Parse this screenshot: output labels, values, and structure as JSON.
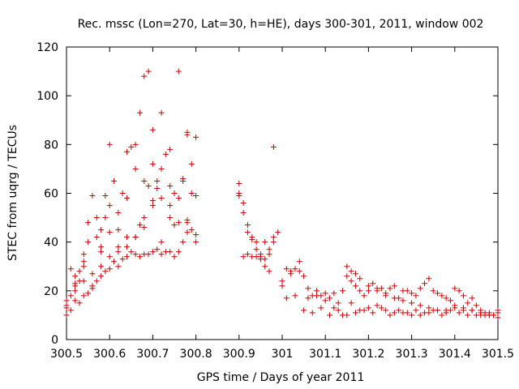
{
  "chart_data": {
    "type": "scatter",
    "title": "Rec. mssc (Lon=270, Lat=30, h=HE), days 300-301, 2011, window 002",
    "xlabel": "GPS time / Days of year 2011",
    "ylabel": "STEC from uqrg / TECUs",
    "xlim": [
      300.5,
      301.5
    ],
    "ylim": [
      0,
      120
    ],
    "xticks": [
      300.5,
      300.6,
      300.7,
      300.8,
      300.9,
      301.0,
      301.1,
      301.2,
      301.3,
      301.4,
      301.5
    ],
    "xtick_labels": [
      "300.5",
      "300.6",
      "300.7",
      "300.8",
      "300.9",
      "301",
      "301.1",
      "301.2",
      "301.3",
      "301.4",
      "301.5"
    ],
    "yticks": [
      0,
      20,
      40,
      60,
      80,
      100,
      120
    ],
    "ytick_labels": [
      "0",
      "20",
      "40",
      "60",
      "80",
      "100",
      "120"
    ],
    "marker": "+",
    "color": "#cc0000",
    "grid": false,
    "series": [
      {
        "x": [
          300.5,
          300.5,
          300.51,
          300.51,
          300.52,
          300.52,
          300.53,
          300.53,
          300.54,
          300.54,
          300.55,
          300.55,
          300.56,
          300.57,
          300.57,
          300.58,
          300.58,
          300.59,
          300.59,
          300.6,
          300.6,
          300.61,
          300.62,
          300.62,
          300.63,
          300.64,
          300.64,
          300.65,
          300.66,
          300.66,
          300.67,
          300.68,
          300.68,
          300.69,
          300.7,
          300.7,
          300.71,
          300.72,
          300.72,
          300.73,
          300.74,
          300.74,
          300.75,
          300.76,
          300.77,
          300.77,
          300.78,
          300.78,
          300.79,
          300.8,
          300.8,
          300.5,
          300.51,
          300.52,
          300.53,
          300.54,
          300.55,
          300.56,
          300.57,
          300.58,
          300.59,
          300.6,
          300.61,
          300.62,
          300.63,
          300.64,
          300.65,
          300.66,
          300.67,
          300.68,
          300.69,
          300.7,
          300.71,
          300.72,
          300.73,
          300.74,
          300.75,
          300.76,
          300.77,
          300.78,
          300.79,
          300.8,
          300.52,
          300.54,
          300.56,
          300.58,
          300.6,
          300.62,
          300.64,
          300.66,
          300.67,
          300.68,
          300.69,
          300.7,
          300.71,
          300.72,
          300.74,
          300.75,
          300.76,
          300.78,
          300.79,
          300.5,
          300.52,
          300.54,
          300.56,
          300.58,
          300.6,
          300.62,
          300.64,
          300.66,
          300.68,
          300.7,
          300.72,
          300.74,
          300.76,
          300.78,
          300.8,
          300.9,
          300.9,
          300.91,
          300.91,
          300.92,
          300.92,
          300.93,
          300.93,
          300.94,
          300.94,
          300.95,
          300.95,
          300.96,
          300.96,
          300.97,
          300.97,
          300.98,
          300.98,
          300.99,
          300.9,
          300.91,
          300.92,
          300.93,
          300.94,
          300.95,
          300.96,
          300.97,
          300.98,
          301.0,
          301.01,
          301.02,
          301.03,
          301.04,
          301.05,
          301.06,
          301.07,
          301.08,
          301.09,
          301.1,
          301.11,
          301.12,
          301.13,
          301.14,
          301.15,
          301.16,
          301.17,
          301.18,
          301.19,
          301.2,
          301.21,
          301.22,
          301.23,
          301.24,
          301.25,
          301.26,
          301.27,
          301.28,
          301.29,
          301.3,
          301.31,
          301.32,
          301.33,
          301.34,
          301.35,
          301.36,
          301.37,
          301.38,
          301.39,
          301.4,
          301.41,
          301.42,
          301.43,
          301.44,
          301.45,
          301.46,
          301.47,
          301.48,
          301.49,
          301.5,
          301.0,
          301.02,
          301.04,
          301.06,
          301.08,
          301.1,
          301.12,
          301.14,
          301.16,
          301.18,
          301.2,
          301.22,
          301.24,
          301.26,
          301.28,
          301.3,
          301.32,
          301.34,
          301.36,
          301.38,
          301.4,
          301.42,
          301.44,
          301.46,
          301.48,
          301.5,
          301.01,
          301.03,
          301.05,
          301.07,
          301.09,
          301.11,
          301.13,
          301.15,
          301.17,
          301.19,
          301.21,
          301.23,
          301.25,
          301.27,
          301.29,
          301.31,
          301.33,
          301.35,
          301.37,
          301.39,
          301.41,
          301.43,
          301.45,
          301.47,
          301.49,
          301.15,
          301.16,
          301.17,
          301.18,
          301.2,
          301.22,
          301.24,
          301.26,
          301.28,
          301.3,
          301.32,
          301.34,
          301.36,
          301.38,
          301.4,
          301.42,
          301.44,
          301.46,
          301.48,
          301.5
        ],
        "y": [
          10,
          14,
          18,
          29,
          20,
          26,
          24,
          28,
          30,
          35,
          40,
          48,
          59,
          50,
          42,
          36,
          45,
          59,
          50,
          80,
          55,
          65,
          45,
          52,
          60,
          58,
          77,
          79,
          70,
          80,
          93,
          65,
          108,
          110,
          72,
          86,
          65,
          93,
          70,
          76,
          78,
          63,
          60,
          110,
          66,
          65,
          84,
          85,
          72,
          83,
          59,
          13,
          12,
          16,
          15,
          18,
          19,
          22,
          24,
          26,
          28,
          29,
          32,
          30,
          33,
          34,
          36,
          35,
          34,
          35,
          35,
          36,
          37,
          35,
          36,
          36,
          34,
          36,
          40,
          44,
          45,
          43,
          22,
          24,
          27,
          30,
          34,
          36,
          38,
          42,
          47,
          50,
          63,
          55,
          62,
          58,
          55,
          47,
          58,
          48,
          60,
          16,
          23,
          32,
          21,
          38,
          44,
          38,
          42,
          42,
          46,
          57,
          40,
          50,
          48,
          49,
          40,
          64,
          59,
          56,
          52,
          47,
          44,
          42,
          41,
          37,
          40,
          35,
          34,
          33,
          30,
          28,
          35,
          42,
          40,
          44,
          60,
          34,
          35,
          34,
          34,
          33,
          40,
          37,
          79,
          24,
          29,
          27,
          29,
          32,
          26,
          21,
          18,
          20,
          18,
          19,
          17,
          19,
          15,
          20,
          26,
          24,
          22,
          20,
          18,
          20,
          23,
          21,
          21,
          19,
          21,
          22,
          17,
          20,
          20,
          19,
          18,
          21,
          23,
          25,
          20,
          19,
          18,
          17,
          16,
          21,
          20,
          18,
          15,
          17,
          14,
          12,
          11,
          10,
          10,
          12,
          22,
          28,
          28,
          17,
          18,
          16,
          13,
          10,
          15,
          12,
          13,
          14,
          12,
          11,
          11,
          10,
          10,
          11,
          12,
          11,
          14,
          13,
          12,
          10,
          10,
          9,
          17,
          18,
          12,
          11,
          13,
          10,
          12,
          10,
          11,
          12,
          11,
          13,
          10,
          12,
          11,
          12,
          11,
          12,
          10,
          12,
          11,
          10,
          10,
          10,
          10,
          30,
          28,
          27,
          25,
          22,
          20,
          18,
          17,
          16,
          15,
          14,
          13,
          12,
          12,
          13,
          12,
          12,
          11,
          11,
          11
        ],
        "estimated": true
      }
    ]
  }
}
